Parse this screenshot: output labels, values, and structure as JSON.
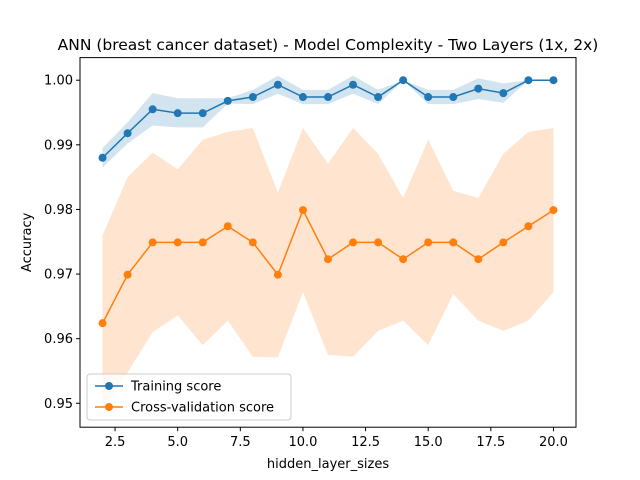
{
  "chart_data": {
    "type": "line",
    "title": "ANN (breast cancer dataset) - Model Complexity - Two Layers (1x, 2x)",
    "xlabel": "hidden_layer_sizes",
    "ylabel": "Accuracy",
    "xlim": [
      1.1,
      20.9
    ],
    "ylim": [
      0.9463,
      1.0035
    ],
    "x_ticks": [
      2.5,
      5.0,
      7.5,
      10.0,
      12.5,
      15.0,
      17.5,
      20.0
    ],
    "x_tick_labels": [
      "2.5",
      "5.0",
      "7.5",
      "10.0",
      "12.5",
      "15.0",
      "17.5",
      "20.0"
    ],
    "y_ticks": [
      0.95,
      0.96,
      0.97,
      0.98,
      0.99,
      1.0
    ],
    "y_tick_labels": [
      "0.95",
      "0.96",
      "0.97",
      "0.98",
      "0.99",
      "1.00"
    ],
    "grid": false,
    "legend_position": "lower-left",
    "x": [
      2,
      3,
      4,
      5,
      6,
      7,
      8,
      9,
      10,
      11,
      12,
      13,
      14,
      15,
      16,
      17,
      18,
      19,
      20
    ],
    "series": [
      {
        "name": "Training score",
        "color": "#1f77b4",
        "values": [
          0.988,
          0.9918,
          0.9955,
          0.9949,
          0.9949,
          0.9968,
          0.9974,
          0.9993,
          0.9974,
          0.9974,
          0.9993,
          0.9974,
          1.0,
          0.9974,
          0.9974,
          0.9987,
          0.998,
          1.0,
          1.0
        ],
        "band_upper": [
          0.9895,
          0.9935,
          0.998,
          0.9972,
          0.9972,
          0.9972,
          0.9985,
          1.0007,
          0.9985,
          0.9985,
          1.0007,
          0.9985,
          1.0,
          0.9985,
          0.9985,
          1.0003,
          0.9995,
          1.0,
          1.0
        ],
        "band_lower": [
          0.9865,
          0.9902,
          0.993,
          0.9927,
          0.9927,
          0.9964,
          0.9963,
          0.9979,
          0.9963,
          0.9963,
          0.9979,
          0.9963,
          1.0,
          0.9963,
          0.9963,
          0.9971,
          0.9965,
          1.0,
          1.0
        ]
      },
      {
        "name": "Cross-validation score",
        "color": "#ff7f0e",
        "values": [
          0.9624,
          0.9699,
          0.9749,
          0.9749,
          0.9749,
          0.9774,
          0.9749,
          0.9699,
          0.9799,
          0.9723,
          0.9749,
          0.9749,
          0.9723,
          0.9749,
          0.9749,
          0.9723,
          0.9749,
          0.9774,
          0.9799
        ],
        "band_upper": [
          0.976,
          0.985,
          0.9888,
          0.9862,
          0.9908,
          0.992,
          0.9926,
          0.9826,
          0.9926,
          0.9871,
          0.9926,
          0.9886,
          0.9818,
          0.9908,
          0.9829,
          0.9818,
          0.9886,
          0.992,
          0.9926
        ],
        "band_lower": [
          0.9488,
          0.9548,
          0.961,
          0.9636,
          0.959,
          0.9628,
          0.9572,
          0.9571,
          0.9672,
          0.9575,
          0.9572,
          0.9612,
          0.9628,
          0.959,
          0.9669,
          0.9628,
          0.9612,
          0.9628,
          0.9672
        ]
      }
    ]
  }
}
